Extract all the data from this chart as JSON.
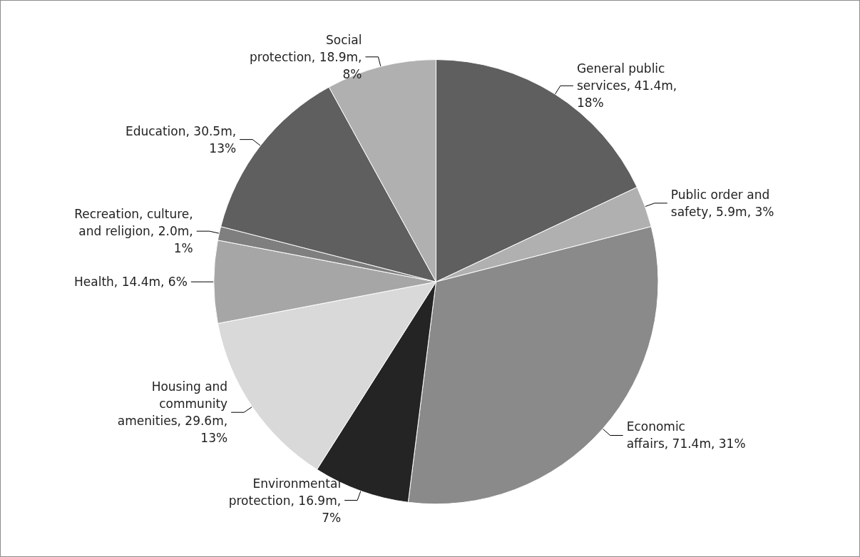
{
  "chart_data": {
    "type": "pie",
    "categories": [
      "General public services",
      "Public order and safety",
      "Economic affairs",
      "Environmental protection",
      "Housing and community amenities",
      "Health",
      "Recreation, culture, and religion",
      "Education",
      "Social protection"
    ],
    "values": [
      18,
      3,
      31,
      7,
      13,
      6,
      1,
      13,
      8
    ],
    "value_labels": [
      "41.4m, 18%",
      "5.9m, 3%",
      "71.4m, 31%",
      "16.9m, 7%",
      "29.6m, 13%",
      "14.4m, 6%",
      "2.0m, 1%",
      "30.5m, 13%",
      "18.9m, 8%"
    ],
    "colors": [
      "#5f5f5f",
      "#b0b0b0",
      "#8a8a8a",
      "#242424",
      "#d9d9d9",
      "#a6a6a6",
      "#7f7f7f",
      "#5f5f5f",
      "#b0b0b0"
    ],
    "legend": false
  }
}
